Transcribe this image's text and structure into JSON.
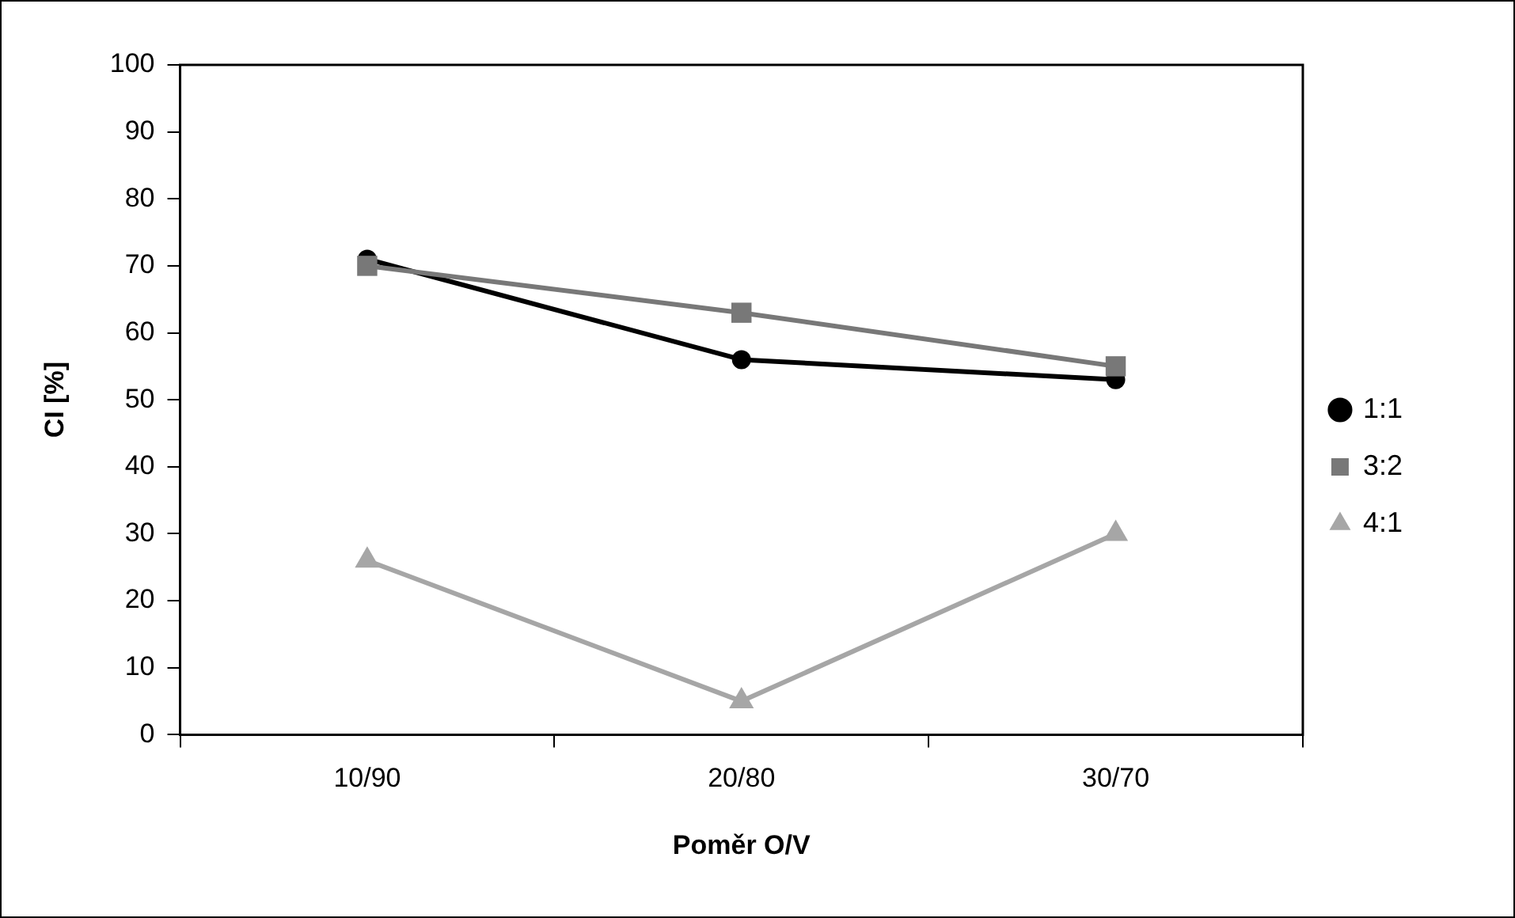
{
  "chart_data": {
    "type": "line",
    "xlabel": "Poměr O/V",
    "ylabel": "CI [%]",
    "categories": [
      "10/90",
      "20/80",
      "30/70"
    ],
    "series": [
      {
        "name": "1:1",
        "color": "#000000",
        "marker": "circle",
        "values": [
          71,
          56,
          53
        ]
      },
      {
        "name": "3:2",
        "color": "#787878",
        "marker": "square",
        "values": [
          70,
          63,
          55
        ]
      },
      {
        "name": "4:1",
        "color": "#a6a6a6",
        "marker": "triangle",
        "values": [
          26,
          5,
          30
        ]
      }
    ],
    "ylim": [
      0,
      100
    ],
    "yticks": [
      0,
      10,
      20,
      30,
      40,
      50,
      60,
      70,
      80,
      90,
      100
    ],
    "grid": false,
    "legend": "right",
    "line_style": "solid"
  }
}
